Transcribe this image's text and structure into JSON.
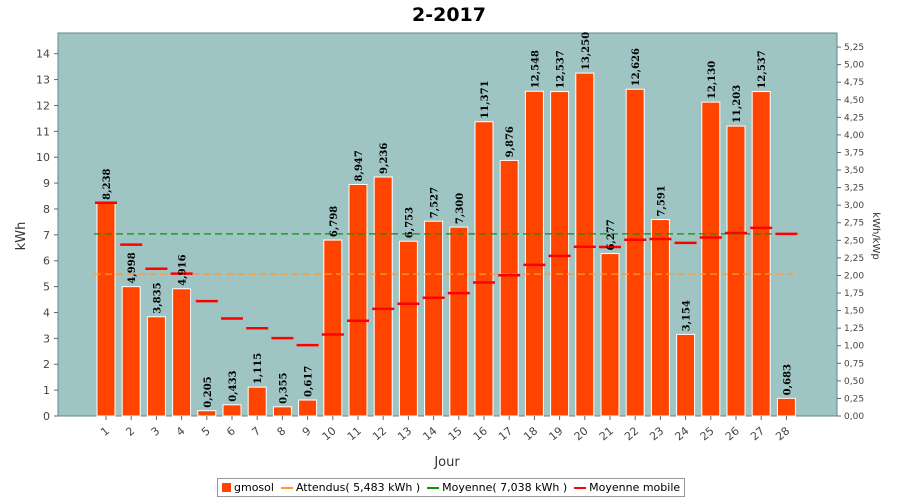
{
  "chart_data": {
    "type": "bar",
    "title": "2-2017",
    "xlabel": "Jour",
    "ylabel": "kWh",
    "y2label": "kWh/kWp",
    "categories": [
      "1",
      "2",
      "3",
      "4",
      "5",
      "6",
      "7",
      "8",
      "9",
      "10",
      "11",
      "12",
      "13",
      "14",
      "15",
      "16",
      "17",
      "18",
      "19",
      "20",
      "21",
      "22",
      "23",
      "24",
      "25",
      "26",
      "27",
      "28"
    ],
    "ylim": [
      0,
      14.8
    ],
    "yticks": [
      "0",
      "1",
      "2",
      "3",
      "4",
      "5",
      "6",
      "7",
      "8",
      "9",
      "10",
      "11",
      "12",
      "13",
      "14"
    ],
    "y2lim": [
      0,
      5.45
    ],
    "y2ticks": [
      "0,00",
      "0,25",
      "0,50",
      "0,75",
      "1,00",
      "1,25",
      "1,50",
      "1,75",
      "2,00",
      "2,25",
      "2,50",
      "2,75",
      "3,00",
      "3,25",
      "3,50",
      "3,75",
      "4,00",
      "4,25",
      "4,50",
      "4,75",
      "5,00",
      "5,25"
    ],
    "grid": false,
    "legend_position": "bottom",
    "series": [
      {
        "name": "gmosol",
        "kind": "bar",
        "color": "#ff4400",
        "values": [
          8.238,
          4.998,
          3.835,
          4.916,
          0.205,
          0.433,
          1.115,
          0.355,
          0.617,
          6.798,
          8.947,
          9.236,
          6.753,
          7.527,
          7.3,
          11.371,
          9.876,
          12.548,
          12.537,
          13.25,
          6.277,
          12.626,
          7.591,
          3.154,
          12.13,
          11.203,
          12.537,
          0.683
        ],
        "labels": [
          "8,238",
          "4,998",
          "3,835",
          "4,916",
          "0,205",
          "0,433",
          "1,115",
          "0,355",
          "0,617",
          "6,798",
          "8,947",
          "9,236",
          "6,753",
          "7,527",
          "7,300",
          "11,371",
          "9,876",
          "12,548",
          "12,537",
          "13,250",
          "6,277",
          "12,626",
          "7,591",
          "3,154",
          "12,130",
          "11,203",
          "12,537",
          "0,683"
        ]
      },
      {
        "name": "Attendus( 5,483 kWh )",
        "kind": "dashed-line",
        "color": "#ff9933",
        "value": 5.483
      },
      {
        "name": "Moyenne( 7,038 kWh )",
        "kind": "dashed-line",
        "color": "#009900",
        "value": 7.038
      },
      {
        "name": "Moyenne mobile",
        "kind": "step-marker",
        "color": "#ff0000",
        "values": [
          8.24,
          6.62,
          5.69,
          5.5,
          4.44,
          3.77,
          3.39,
          3.01,
          2.74,
          3.15,
          3.68,
          4.14,
          4.34,
          4.57,
          4.75,
          5.16,
          5.44,
          5.84,
          6.19,
          6.54,
          6.53,
          6.81,
          6.84,
          6.69,
          6.9,
          7.07,
          7.27,
          7.04
        ]
      }
    ],
    "colors": {
      "plot_background": "#9fc4c4",
      "plot_border": "#5f8a8a"
    }
  }
}
